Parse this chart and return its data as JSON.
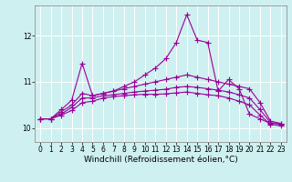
{
  "x": [
    0,
    1,
    2,
    3,
    4,
    5,
    6,
    7,
    8,
    9,
    10,
    11,
    12,
    13,
    14,
    15,
    16,
    17,
    18,
    19,
    20,
    21,
    22,
    23
  ],
  "lines": [
    [
      10.2,
      10.2,
      10.4,
      10.6,
      11.4,
      10.7,
      10.75,
      10.8,
      10.9,
      11.0,
      11.15,
      11.3,
      11.5,
      11.85,
      12.45,
      11.9,
      11.85,
      10.8,
      11.05,
      10.85,
      10.3,
      10.2,
      10.1,
      10.1
    ],
    [
      10.2,
      10.2,
      10.35,
      10.5,
      10.75,
      10.7,
      10.75,
      10.8,
      10.85,
      10.9,
      10.95,
      11.0,
      11.05,
      11.1,
      11.15,
      11.1,
      11.05,
      11.0,
      10.95,
      10.9,
      10.85,
      10.55,
      10.15,
      10.1
    ],
    [
      10.2,
      10.2,
      10.3,
      10.45,
      10.65,
      10.65,
      10.7,
      10.72,
      10.75,
      10.78,
      10.8,
      10.82,
      10.84,
      10.88,
      10.9,
      10.88,
      10.85,
      10.82,
      10.78,
      10.72,
      10.65,
      10.4,
      10.12,
      10.08
    ],
    [
      10.2,
      10.2,
      10.28,
      10.38,
      10.55,
      10.58,
      10.65,
      10.68,
      10.7,
      10.72,
      10.73,
      10.73,
      10.74,
      10.76,
      10.78,
      10.75,
      10.72,
      10.7,
      10.65,
      10.58,
      10.5,
      10.28,
      10.08,
      10.05
    ]
  ],
  "color": "#990099",
  "marker": "+",
  "markersize": 4,
  "linewidth": 0.8,
  "markeredgewidth": 0.8,
  "xlabel": "Windchill (Refroidissement éolien,°C)",
  "xlabel_fontsize": 6.5,
  "ylabel_ticks": [
    10,
    11,
    12
  ],
  "xticks": [
    0,
    1,
    2,
    3,
    4,
    5,
    6,
    7,
    8,
    9,
    10,
    11,
    12,
    13,
    14,
    15,
    16,
    17,
    18,
    19,
    20,
    21,
    22,
    23
  ],
  "xlim": [
    -0.5,
    23.5
  ],
  "ylim": [
    9.7,
    12.65
  ],
  "bg_color": "#cff0f0",
  "grid_color": "white",
  "tick_fontsize": 5.5
}
